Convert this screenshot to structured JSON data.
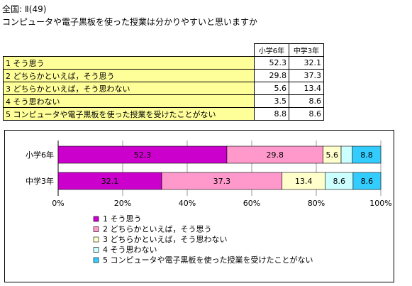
{
  "header": {
    "region": "全国: Ⅱ(49)",
    "question": "コンピュータや電子黒板を使った授業は分かりやすいと思いますか"
  },
  "table": {
    "columns": [
      "小学6年",
      "中学3年"
    ],
    "rows": [
      {
        "label": "1 そう思う",
        "values": [
          "52.3",
          "32.1"
        ]
      },
      {
        "label": "2 どちらかといえば，そう思う",
        "values": [
          "29.8",
          "37.3"
        ]
      },
      {
        "label": "3 どちらかといえば，そう思わない",
        "values": [
          "5.6",
          "13.4"
        ]
      },
      {
        "label": "4 そう思わない",
        "values": [
          "3.5",
          "8.6"
        ]
      },
      {
        "label": "5 コンピュータや電子黒板を使った授業を受けたことがない",
        "values": [
          "8.8",
          "8.6"
        ]
      }
    ]
  },
  "chart_data": {
    "type": "bar",
    "orientation": "horizontal",
    "stacked": "percent",
    "categories": [
      "小学6年",
      "中学3年"
    ],
    "series": [
      {
        "name": "1 そう思う",
        "values": [
          52.3,
          32.1
        ],
        "color": "#cc00cc"
      },
      {
        "name": "2 どちらかといえば，そう思う",
        "values": [
          29.8,
          37.3
        ],
        "color": "#ff99cc"
      },
      {
        "name": "3 どちらかといえば，そう思わない",
        "values": [
          5.6,
          13.4
        ],
        "color": "#ffffcc"
      },
      {
        "name": "4 そう思わない",
        "values": [
          3.5,
          8.6
        ],
        "color": "#ccffff"
      },
      {
        "name": "5 コンピュータや電子黒板を使った授業を受けたことがない",
        "values": [
          8.8,
          8.6
        ],
        "color": "#33ccff"
      }
    ],
    "bar_labels": [
      [
        "52.3",
        "29.8",
        "5.6",
        "",
        "8.8"
      ],
      [
        "32.1",
        "37.3",
        "13.4",
        "8.6",
        "8.6"
      ]
    ],
    "x_ticks": [
      "0%",
      "20%",
      "40%",
      "60%",
      "80%",
      "100%"
    ],
    "xlim": [
      0,
      100
    ],
    "grid": true,
    "legend_position": "bottom"
  }
}
